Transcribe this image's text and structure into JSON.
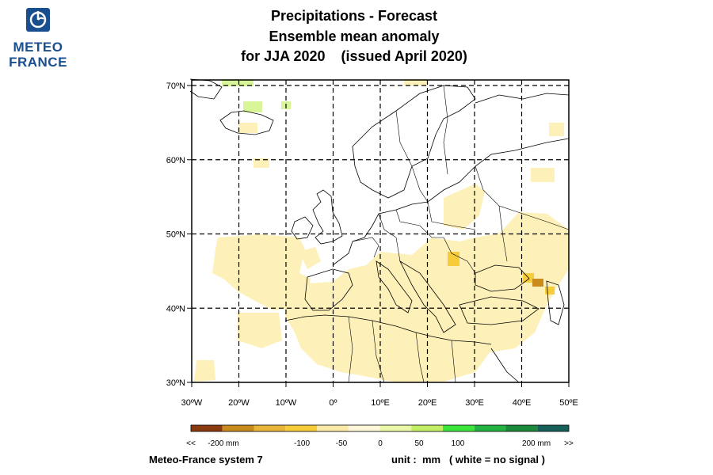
{
  "logo": {
    "line1": "METEO",
    "line2": "FRANCE",
    "icon": "meteo-france-logo-icon"
  },
  "title": {
    "line1": "Precipitations   -   Forecast",
    "line2": "Ensemble mean anomaly",
    "line3": "for JJA 2020    (issued April 2020)"
  },
  "map": {
    "lat_labels": [
      "70ºN",
      "60ºN",
      "50ºN",
      "40ºN",
      "30ºN"
    ],
    "lon_labels": [
      "30ºW",
      "20ºW",
      "10ºW",
      "0º",
      "10ºE",
      "20ºE",
      "30ºE",
      "40ºE",
      "50ºE"
    ],
    "lat_values": [
      70,
      60,
      50,
      40,
      30
    ],
    "lon_values": [
      -30,
      -20,
      -10,
      0,
      10,
      20,
      30,
      40,
      50
    ],
    "grid": "dashed"
  },
  "legend": {
    "colors": [
      "#8b3a0f",
      "#c98a1e",
      "#e8b43a",
      "#f7cc3a",
      "#fbe9a8",
      "#fef7d9",
      "#eaf7a6",
      "#c3ef66",
      "#3be53b",
      "#24b341",
      "#1b8a3a",
      "#16605a"
    ],
    "labels": [
      "<<",
      "-200 mm",
      "-100",
      "-50",
      "0",
      "50",
      "100",
      "200 mm",
      ">>"
    ]
  },
  "footer": {
    "system": "Meteo-France system 7",
    "unit": "unit :  mm   ( white = no signal )"
  }
}
